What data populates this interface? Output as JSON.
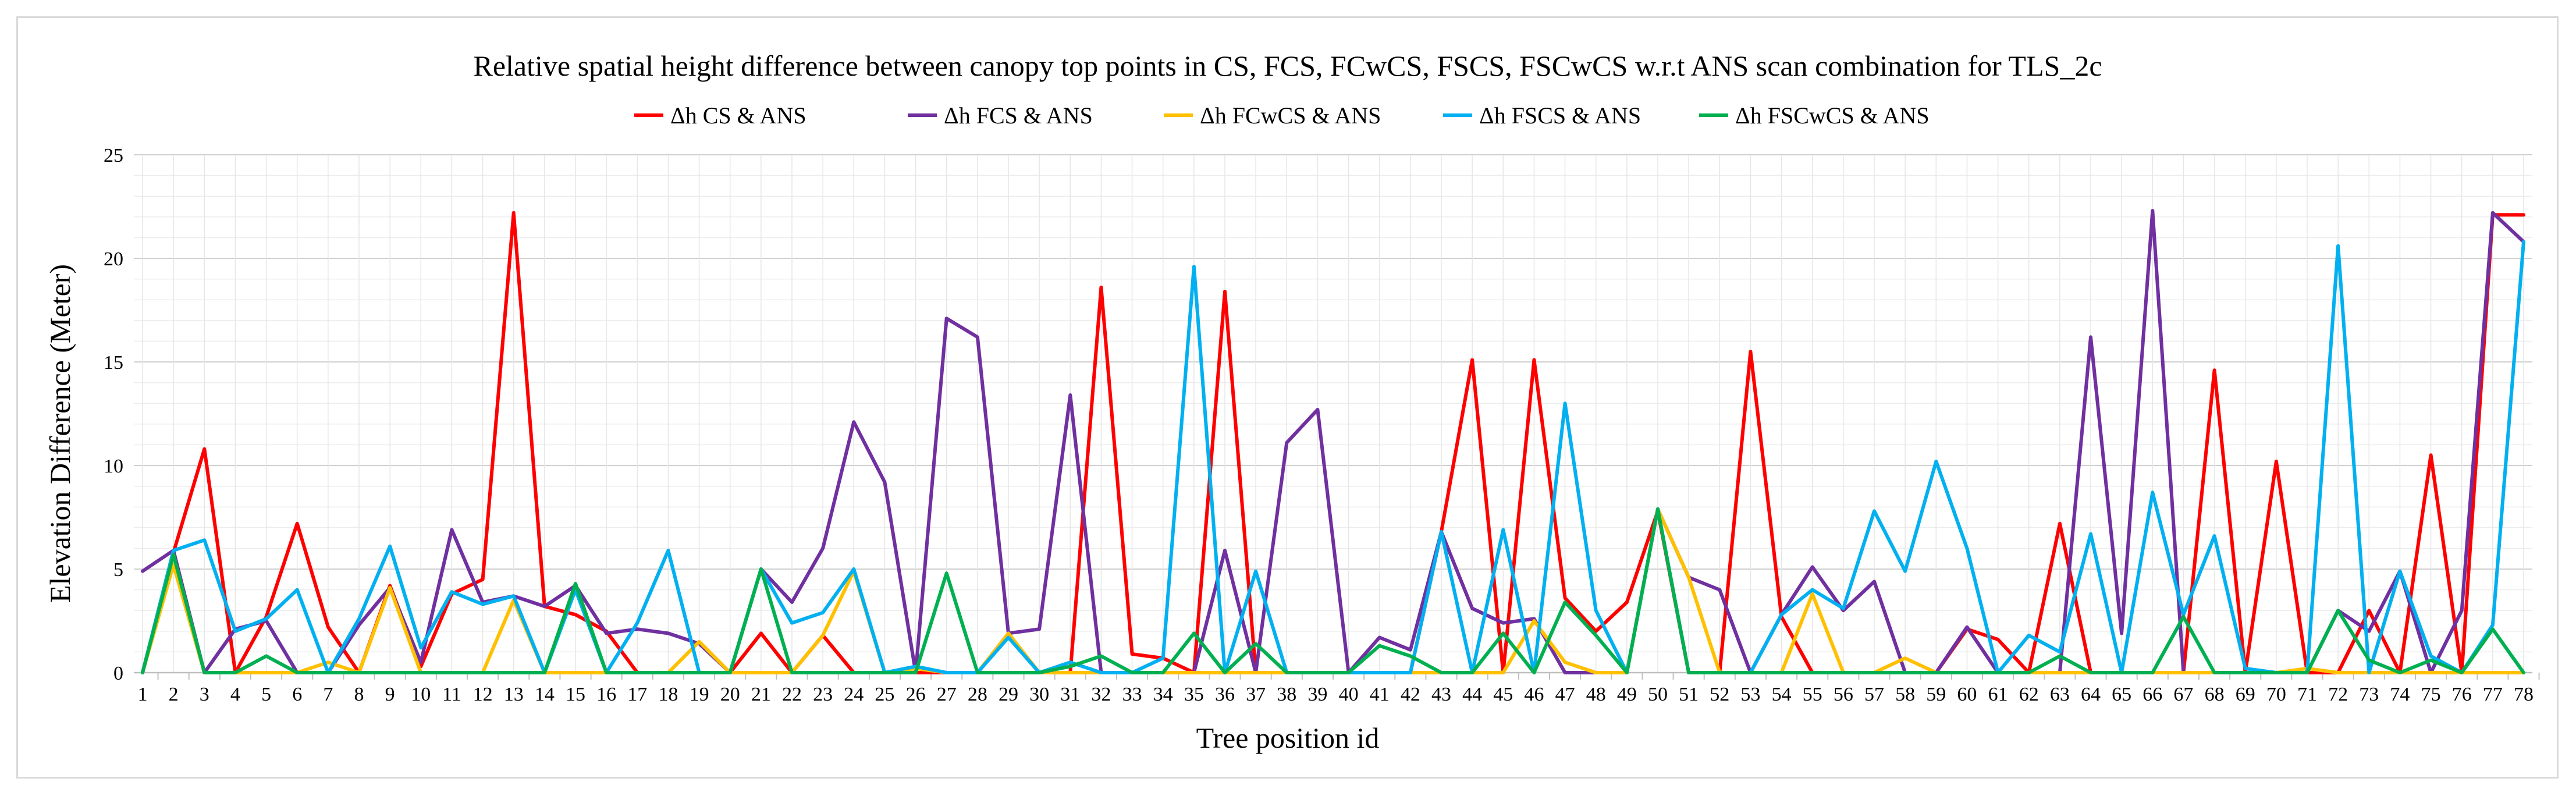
{
  "chart_data": {
    "type": "line",
    "title": "Relative spatial height difference between canopy top points in CS, FCS, FCwCS, FSCS, FSCwCS w.r.t ANS scan combination for TLS_2c",
    "xlabel": "Tree position id",
    "ylabel": "Elevation Difference (Meter)",
    "ylim": [
      0,
      25
    ],
    "yticks": [
      0,
      5,
      10,
      15,
      20,
      25
    ],
    "grid": true,
    "legend_position": "top",
    "categories": [
      "1",
      "2",
      "3",
      "4",
      "5",
      "6",
      "7",
      "8",
      "9",
      "10",
      "11",
      "12",
      "13",
      "14",
      "15",
      "16",
      "17",
      "18",
      "19",
      "20",
      "21",
      "22",
      "23",
      "24",
      "25",
      "26",
      "27",
      "28",
      "29",
      "30",
      "31",
      "32",
      "33",
      "34",
      "35",
      "36",
      "37",
      "38",
      "39",
      "40",
      "41",
      "42",
      "43",
      "44",
      "45",
      "46",
      "47",
      "48",
      "49",
      "50",
      "51",
      "52",
      "53",
      "54",
      "55",
      "56",
      "57",
      "58",
      "59",
      "60",
      "61",
      "62",
      "63",
      "64",
      "65",
      "66",
      "67",
      "68",
      "69",
      "70",
      "71",
      "72",
      "73",
      "74",
      "75",
      "76",
      "77",
      "78"
    ],
    "series": [
      {
        "name": "Δh CS & ANS",
        "color": "#ff0000",
        "values": [
          0,
          5.8,
          10.8,
          0,
          2.7,
          7.2,
          2.2,
          0,
          4.2,
          0.3,
          3.8,
          4.5,
          22.2,
          3.2,
          2.8,
          2,
          0,
          0,
          0,
          0,
          1.9,
          0,
          1.8,
          0,
          0,
          0,
          0,
          0,
          0,
          0,
          0,
          18.6,
          0.9,
          0.7,
          0,
          18.4,
          0,
          0,
          0,
          0,
          0,
          0,
          6.8,
          15.1,
          0,
          15.1,
          3.6,
          2,
          3.4,
          7.8,
          0,
          0,
          15.5,
          2.7,
          0,
          0,
          0,
          0,
          0,
          2.1,
          1.6,
          0,
          7.2,
          0,
          0,
          0,
          0,
          14.6,
          0,
          10.2,
          0,
          0,
          3,
          0,
          10.5,
          0,
          22.1,
          22.1
        ]
      },
      {
        "name": "Δh FCS & ANS",
        "color": "#7030a0",
        "values": [
          4.9,
          5.9,
          0,
          2.1,
          2.5,
          0,
          0,
          2.3,
          4.1,
          0.5,
          6.9,
          3.4,
          3.7,
          3.2,
          4.2,
          1.9,
          2.1,
          1.9,
          1.4,
          0,
          5,
          3.4,
          6,
          12.1,
          9.2,
          0,
          17.1,
          16.2,
          1.9,
          2.1,
          13.4,
          0,
          0,
          0,
          0,
          5.9,
          0,
          11.1,
          12.7,
          0,
          1.7,
          1.1,
          6.8,
          3.1,
          2.4,
          2.6,
          0,
          0,
          0,
          7.9,
          4.6,
          4,
          0,
          2.8,
          5.1,
          3,
          4.4,
          0,
          0,
          2.2,
          0,
          0,
          0,
          16.2,
          1.9,
          22.3,
          0,
          0,
          0,
          0,
          0,
          3,
          2,
          4.9,
          0,
          3,
          22.2,
          20.8
        ]
      },
      {
        "name": "Δh FCwCS & ANS",
        "color": "#ffc000",
        "values": [
          0,
          5.2,
          0,
          0,
          0,
          0,
          0.5,
          0,
          4.1,
          0,
          0,
          0,
          3.5,
          0,
          0,
          0,
          0,
          0,
          1.5,
          0,
          0,
          0,
          1.8,
          4.9,
          0,
          0.2,
          0,
          0,
          1.9,
          0,
          0,
          0,
          0,
          0,
          0,
          0,
          0,
          0,
          0,
          0,
          0,
          0,
          0,
          0,
          0,
          2.5,
          0.5,
          0,
          0,
          7.9,
          4.6,
          0,
          0,
          0,
          3.8,
          0,
          0,
          0.7,
          0,
          0,
          0,
          0,
          0,
          0,
          0,
          0,
          0,
          0,
          0,
          0,
          0.2,
          0,
          0,
          0,
          0,
          0,
          0,
          0
        ]
      },
      {
        "name": "Δh FSCS & ANS",
        "color": "#00b0f0",
        "values": [
          0,
          5.9,
          6.4,
          2,
          2.6,
          4,
          0,
          2.6,
          6.1,
          1.2,
          3.9,
          3.3,
          3.7,
          0,
          4,
          0,
          2.4,
          5.9,
          0,
          0,
          5,
          2.4,
          2.9,
          5,
          0,
          0.3,
          0,
          0,
          1.7,
          0,
          0.5,
          0,
          0,
          0.7,
          19.6,
          0,
          4.9,
          0,
          0,
          0,
          0,
          0,
          6.8,
          0,
          6.9,
          0,
          13,
          3,
          0,
          7.9,
          0,
          0,
          0,
          2.8,
          4,
          3.1,
          7.8,
          4.9,
          10.2,
          6,
          0,
          1.8,
          1,
          6.7,
          0,
          8.7,
          2.8,
          6.6,
          0.2,
          0,
          0,
          20.6,
          0,
          4.9,
          0.8,
          0,
          2.3,
          20.8
        ]
      },
      {
        "name": "Δh FSCwCS & ANS",
        "color": "#00b050",
        "values": [
          0,
          5.7,
          0,
          0,
          0.8,
          0,
          0,
          0,
          0,
          0,
          0,
          0,
          0,
          0,
          4.3,
          0,
          0,
          0,
          0,
          0,
          5,
          0,
          0,
          0,
          0,
          0,
          4.8,
          0,
          0,
          0,
          0.3,
          0.8,
          0,
          0,
          1.9,
          0,
          1.4,
          0,
          0,
          0,
          1.3,
          0.8,
          0,
          0,
          1.9,
          0,
          3.4,
          1.8,
          0,
          7.9,
          0,
          0,
          0,
          0,
          0,
          0,
          0,
          0,
          0,
          0,
          0,
          0,
          0.8,
          0,
          0,
          0,
          2.7,
          0,
          0,
          0,
          0,
          3,
          0.6,
          0,
          0.6,
          0,
          2.1,
          0
        ]
      }
    ]
  }
}
